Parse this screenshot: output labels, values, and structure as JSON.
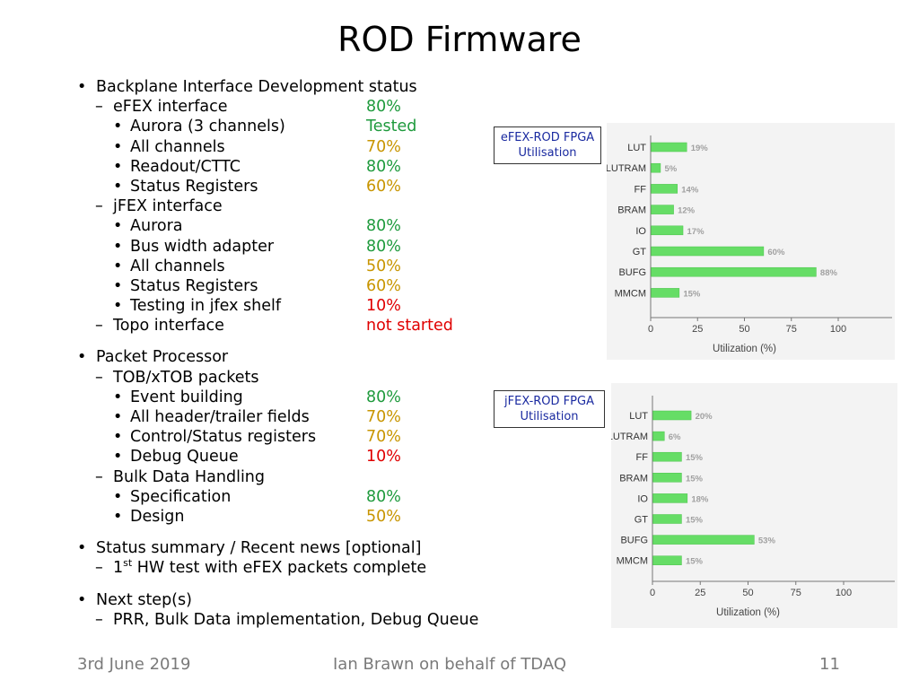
{
  "title": "ROD Firmware",
  "rows": [
    {
      "level": 1,
      "marker": "•",
      "text": "Backplane Interface Development status",
      "status": "",
      "color": ""
    },
    {
      "level": 2,
      "marker": "–",
      "text": "eFEX interface",
      "status": "80%",
      "color": "green"
    },
    {
      "level": 3,
      "marker": "•",
      "text": "Aurora (3 channels)",
      "status": "Tested",
      "color": "green"
    },
    {
      "level": 3,
      "marker": "•",
      "text": "All channels",
      "status": "70%",
      "color": "amber"
    },
    {
      "level": 3,
      "marker": "•",
      "text": "Readout/CTTC",
      "status": "80%",
      "color": "green"
    },
    {
      "level": 3,
      "marker": "•",
      "text": "Status Registers",
      "status": "60%",
      "color": "amber"
    },
    {
      "level": 2,
      "marker": "–",
      "text": "jFEX interface",
      "status": "",
      "color": ""
    },
    {
      "level": 3,
      "marker": "•",
      "text": "Aurora",
      "status": "80%",
      "color": "green"
    },
    {
      "level": 3,
      "marker": "•",
      "text": "Bus width adapter",
      "status": "80%",
      "color": "green"
    },
    {
      "level": 3,
      "marker": "•",
      "text": "All channels",
      "status": "50%",
      "color": "amber"
    },
    {
      "level": 3,
      "marker": "•",
      "text": "Status Registers",
      "status": "60%",
      "color": "amber"
    },
    {
      "level": 3,
      "marker": "•",
      "text": "Testing in jfex shelf",
      "status": "10%",
      "color": "red"
    },
    {
      "level": 2,
      "marker": "–",
      "text": "Topo interface",
      "status": "not started",
      "color": "red"
    },
    {
      "gap": true
    },
    {
      "level": 1,
      "marker": "•",
      "text": "Packet Processor",
      "status": "",
      "color": ""
    },
    {
      "level": 2,
      "marker": "–",
      "text": "TOB/xTOB packets",
      "status": "",
      "color": ""
    },
    {
      "level": 3,
      "marker": "•",
      "text": "Event building",
      "status": "80%",
      "color": "green"
    },
    {
      "level": 3,
      "marker": "•",
      "text": "All header/trailer fields",
      "status": "70%",
      "color": "amber"
    },
    {
      "level": 3,
      "marker": "•",
      "text": "Control/Status registers",
      "status": "70%",
      "color": "amber"
    },
    {
      "level": 3,
      "marker": "•",
      "text": "Debug Queue",
      "status": "10%",
      "color": "red"
    },
    {
      "level": 2,
      "marker": "–",
      "text": "Bulk Data Handling",
      "status": "",
      "color": ""
    },
    {
      "level": 3,
      "marker": "•",
      "text": "Specification",
      "status": "80%",
      "color": "green"
    },
    {
      "level": 3,
      "marker": "•",
      "text": "Design",
      "status": "50%",
      "color": "amber"
    },
    {
      "gap": true
    },
    {
      "level": 1,
      "marker": "•",
      "text": "Status summary / Recent news [optional]",
      "status": "",
      "color": ""
    },
    {
      "level": 2,
      "marker": "–",
      "text": "1",
      "sup": "st",
      "text2": " HW test with eFEX packets complete",
      "status": "",
      "color": ""
    },
    {
      "gap": true
    },
    {
      "level": 1,
      "marker": "•",
      "text": "Next step(s)",
      "status": "",
      "color": ""
    },
    {
      "level": 2,
      "marker": "–",
      "text": "PRR, Bulk Data implementation, Debug Queue",
      "status": "",
      "color": ""
    }
  ],
  "chart_labels": {
    "efex": {
      "line1": "eFEX-ROD FPGA",
      "line2": "Utilisation"
    },
    "jfex": {
      "line1": "jFEX-ROD FPGA",
      "line2": "Utilisation"
    }
  },
  "chart_data": [
    {
      "type": "bar",
      "orientation": "horizontal",
      "categories": [
        "LUT",
        "LUTRAM",
        "FF",
        "BRAM",
        "IO",
        "GT",
        "BUFG",
        "MMCM"
      ],
      "values": [
        19,
        5,
        14,
        12,
        17,
        60,
        88,
        15
      ],
      "data_labels": [
        "19%",
        "5%",
        "14%",
        "12%",
        "17%",
        "60%",
        "88%",
        "15%"
      ],
      "xlabel": "Utilization (%)",
      "xticks": [
        "0",
        "25",
        "50",
        "75",
        "100"
      ],
      "xlim": [
        0,
        100
      ],
      "bar_color": "#66dd66"
    },
    {
      "type": "bar",
      "orientation": "horizontal",
      "categories": [
        "LUT",
        "LUTRAM",
        "FF",
        "BRAM",
        "IO",
        "GT",
        "BUFG",
        "MMCM"
      ],
      "values": [
        20,
        6,
        15,
        15,
        18,
        15,
        53,
        15
      ],
      "data_labels": [
        "20%",
        "6%",
        "15%",
        "15%",
        "18%",
        "15%",
        "53%",
        "15%"
      ],
      "xlabel": "Utilization (%)",
      "xticks": [
        "0",
        "25",
        "50",
        "75",
        "100"
      ],
      "xlim": [
        0,
        100
      ],
      "bar_color": "#66dd66"
    }
  ],
  "footer": {
    "date": "3rd June 2019",
    "author": "Ian Brawn on behalf of TDAQ",
    "page": "11"
  },
  "colors": {
    "green": "#1e9a3c",
    "amber": "#c89500",
    "red": "#e00000"
  }
}
